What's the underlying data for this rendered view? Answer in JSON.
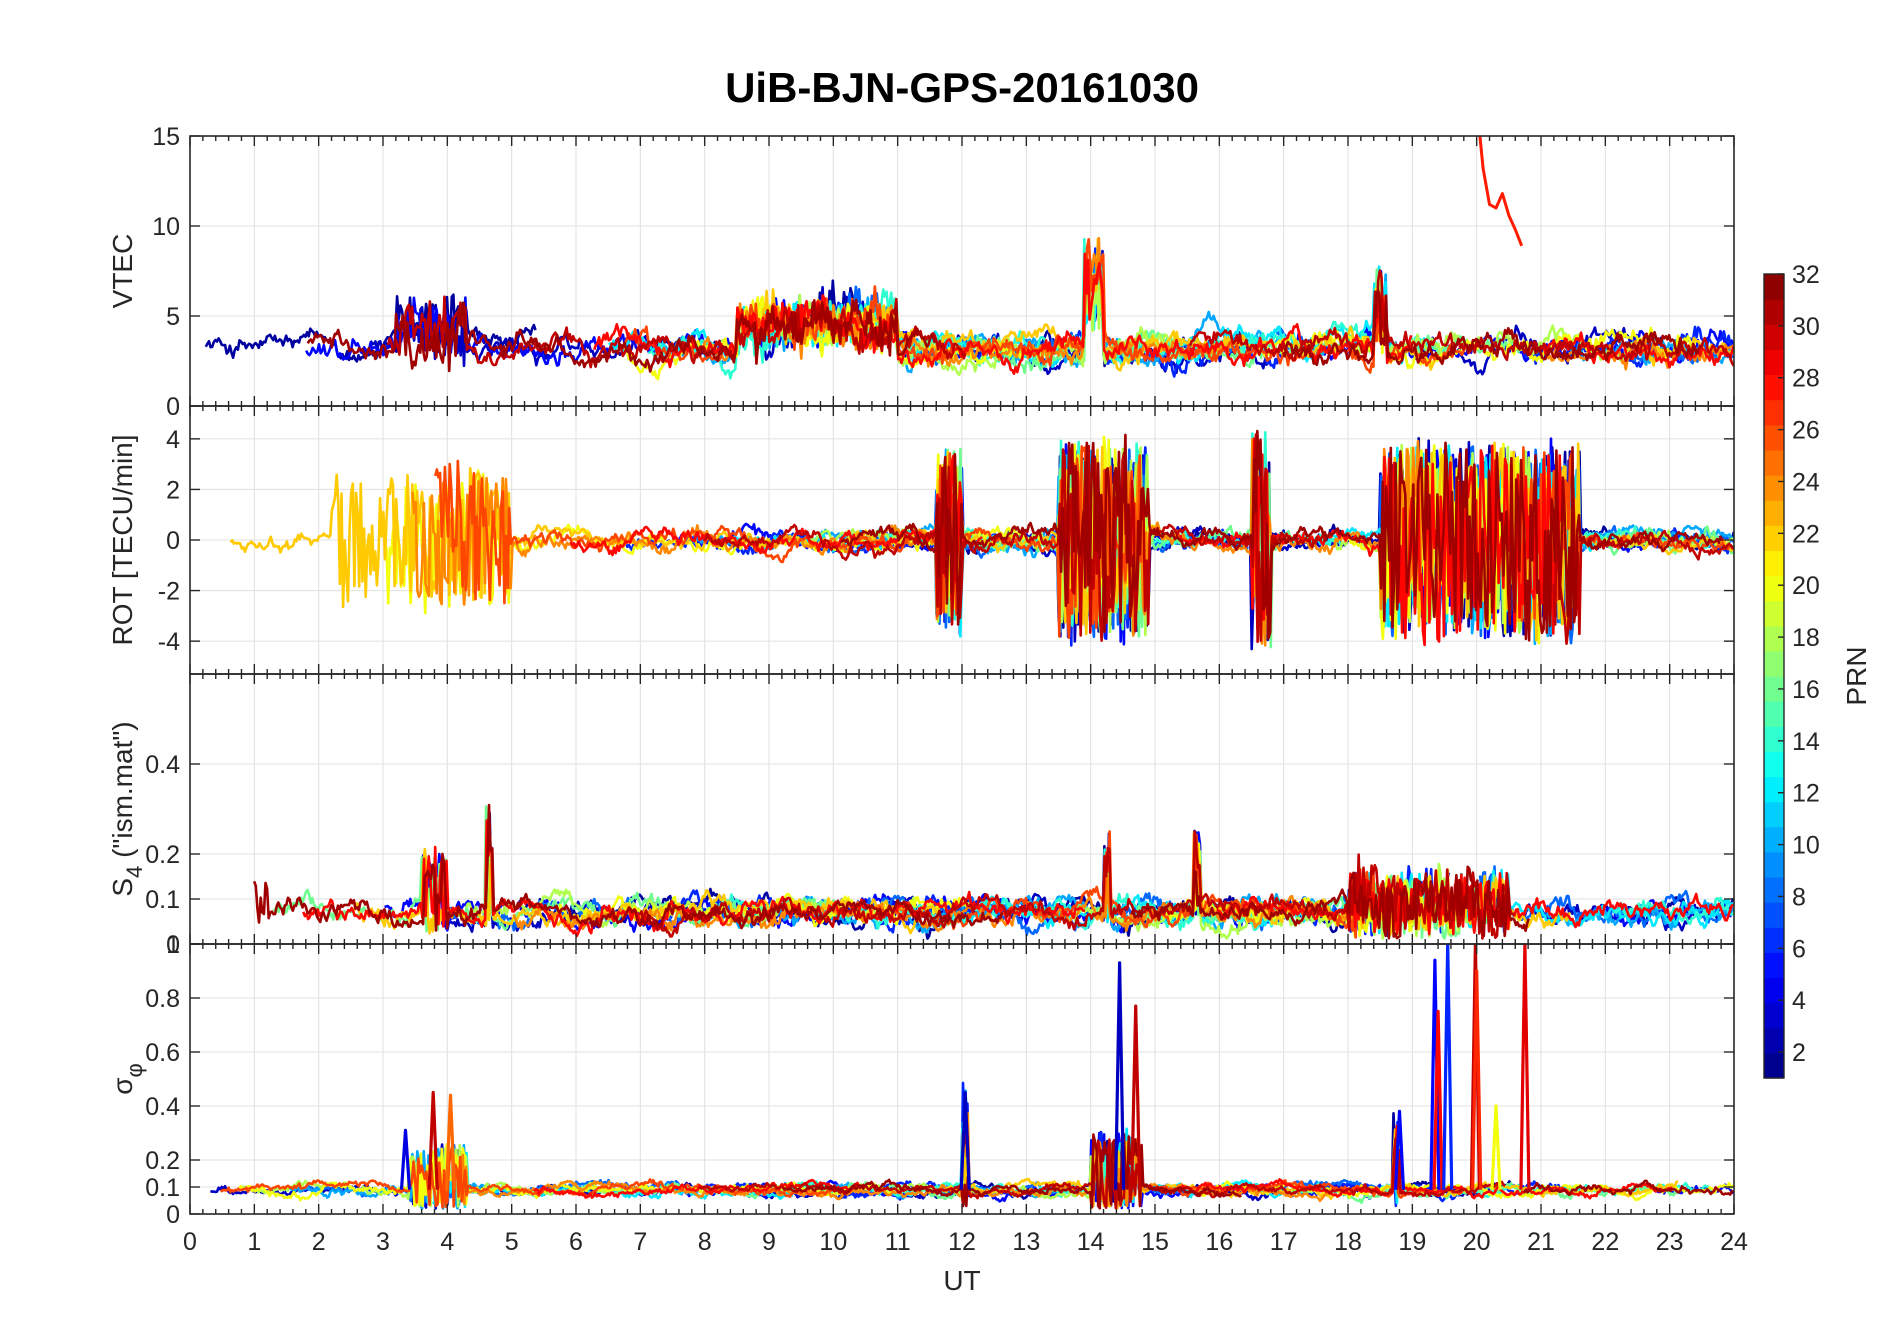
{
  "chart_data": {
    "type": "line",
    "title": "UiB-BJN-GPS-20161030",
    "xlabel": "UT",
    "xlim": [
      0,
      24
    ],
    "x_ticks": [
      "0",
      "1",
      "2",
      "3",
      "4",
      "5",
      "6",
      "7",
      "8",
      "9",
      "10",
      "11",
      "12",
      "13",
      "14",
      "15",
      "16",
      "17",
      "18",
      "19",
      "20",
      "21",
      "22",
      "23",
      "24"
    ],
    "panels": [
      {
        "id": "vtec",
        "ylabel": "VTEC",
        "ylim": [
          0,
          15
        ],
        "y_ticks": [
          "0",
          "5",
          "10",
          "15"
        ],
        "y_tick_values": [
          0,
          5,
          10,
          15
        ],
        "baseline": 3.2,
        "noise": 0.7,
        "events": [
          {
            "t": [
              3.2,
              4.3
            ],
            "amp": 1.2,
            "shift": 1.5
          },
          {
            "t": [
              8.5,
              11.0
            ],
            "amp": 0.6,
            "shift": 2.2
          },
          {
            "t": [
              13.9,
              14.2
            ],
            "amp": 0.8,
            "shift": 5.0
          },
          {
            "t": [
              18.4,
              18.6
            ],
            "amp": 1.5,
            "shift": 3.0
          }
        ],
        "highlight_series": [
          {
            "prn": 28,
            "color": "#ff1a00",
            "x": [
              20.05,
              20.1,
              20.2,
              20.3,
              20.4,
              20.5,
              20.6,
              20.7
            ],
            "y": [
              15.0,
              13.2,
              11.2,
              11.0,
              11.8,
              10.6,
              9.8,
              8.9
            ]
          }
        ]
      },
      {
        "id": "rot",
        "ylabel": "ROT [TECU/min]",
        "ylim": [
          -5.3,
          5.3
        ],
        "y_ticks": [
          "-4",
          "-2",
          "0",
          "2",
          "4"
        ],
        "y_tick_values": [
          -4,
          -2,
          0,
          2,
          4
        ],
        "baseline": 0,
        "noise": 0.35,
        "events": [
          {
            "t": [
              2.2,
              5.0
            ],
            "amp": 2.6,
            "shift": 0
          },
          {
            "t": [
              11.6,
              12.0
            ],
            "amp": 3.5,
            "shift": 0
          },
          {
            "t": [
              13.5,
              14.9
            ],
            "amp": 3.8,
            "shift": 0
          },
          {
            "t": [
              16.5,
              16.8
            ],
            "amp": 4.5,
            "shift": 0
          },
          {
            "t": [
              18.5,
              21.6
            ],
            "amp": 3.8,
            "shift": 0
          }
        ]
      },
      {
        "id": "s4",
        "ylabel": "S4 (\"ism.mat\")",
        "ylabel_main": "S",
        "ylabel_sub": "4",
        "ylabel_rest": " (\"ism.mat\")",
        "ylim": [
          0,
          0.6
        ],
        "y_ticks": [
          "0",
          "0.1",
          "0.2",
          "0.4"
        ],
        "y_tick_values": [
          0,
          0.1,
          0.2,
          0.4
        ],
        "baseline": 0.07,
        "noise": 0.025,
        "events": [
          {
            "t": [
              0.6,
              1.2
            ],
            "amp": 0.06,
            "shift": 0.03
          },
          {
            "t": [
              3.6,
              4.0
            ],
            "amp": 0.08,
            "shift": 0.05
          },
          {
            "t": [
              4.6,
              4.7
            ],
            "amp": 0.1,
            "shift": 0.18
          },
          {
            "t": [
              14.2,
              14.3
            ],
            "amp": 0.08,
            "shift": 0.1
          },
          {
            "t": [
              15.6,
              15.7
            ],
            "amp": 0.08,
            "shift": 0.12
          },
          {
            "t": [
              18.0,
              20.5
            ],
            "amp": 0.06,
            "shift": 0.03
          }
        ]
      },
      {
        "id": "sigphi",
        "ylabel": "σ φ",
        "ylabel_main": "σ",
        "ylabel_sub": "φ",
        "ylim": [
          0,
          1
        ],
        "y_ticks": [
          "0",
          "0.1",
          "0.2",
          "0.4",
          "0.6",
          "0.8",
          "1"
        ],
        "y_tick_values": [
          0,
          0.1,
          0.2,
          0.4,
          0.6,
          0.8,
          1
        ],
        "baseline": 0.09,
        "noise": 0.018,
        "events": [
          {
            "t": [
              3.4,
              4.3
            ],
            "amp": 0.12,
            "shift": 0.05
          },
          {
            "t": [
              12.0,
              12.1
            ],
            "amp": 0.2,
            "shift": 0.2
          },
          {
            "t": [
              14.0,
              14.8
            ],
            "amp": 0.15,
            "shift": 0.08
          },
          {
            "t": [
              18.7,
              18.8
            ],
            "amp": 0.15,
            "shift": 0.15
          }
        ],
        "spikes": [
          {
            "x": 3.35,
            "y": 0.31,
            "prn": 4
          },
          {
            "x": 3.78,
            "y": 0.45,
            "prn": 30
          },
          {
            "x": 4.05,
            "y": 0.44,
            "prn": 25
          },
          {
            "x": 12.05,
            "y": 0.45,
            "prn": 3
          },
          {
            "x": 14.45,
            "y": 0.93,
            "prn": 3
          },
          {
            "x": 14.7,
            "y": 0.77,
            "prn": 30
          },
          {
            "x": 18.8,
            "y": 0.38,
            "prn": 5
          },
          {
            "x": 19.35,
            "y": 0.94,
            "prn": 5
          },
          {
            "x": 19.4,
            "y": 0.75,
            "prn": 28
          },
          {
            "x": 19.55,
            "y": 1.0,
            "prn": 6
          },
          {
            "x": 19.98,
            "y": 1.0,
            "prn": 30
          },
          {
            "x": 20.0,
            "y": 0.9,
            "prn": 27
          },
          {
            "x": 20.3,
            "y": 0.4,
            "prn": 20
          },
          {
            "x": 20.75,
            "y": 1.0,
            "prn": 29
          }
        ]
      }
    ],
    "colorbar": {
      "label": "PRN",
      "range": [
        1,
        32
      ],
      "ticks": [
        "2",
        "4",
        "6",
        "8",
        "10",
        "12",
        "14",
        "16",
        "18",
        "20",
        "22",
        "24",
        "26",
        "28",
        "30",
        "32"
      ],
      "tick_values": [
        2,
        4,
        6,
        8,
        10,
        12,
        14,
        16,
        18,
        20,
        22,
        24,
        26,
        28,
        30,
        32
      ],
      "colormap": "jet"
    },
    "series_prns": [
      2,
      3,
      5,
      6,
      8,
      10,
      12,
      14,
      16,
      18,
      20,
      22,
      24,
      26,
      28,
      30,
      31
    ]
  }
}
